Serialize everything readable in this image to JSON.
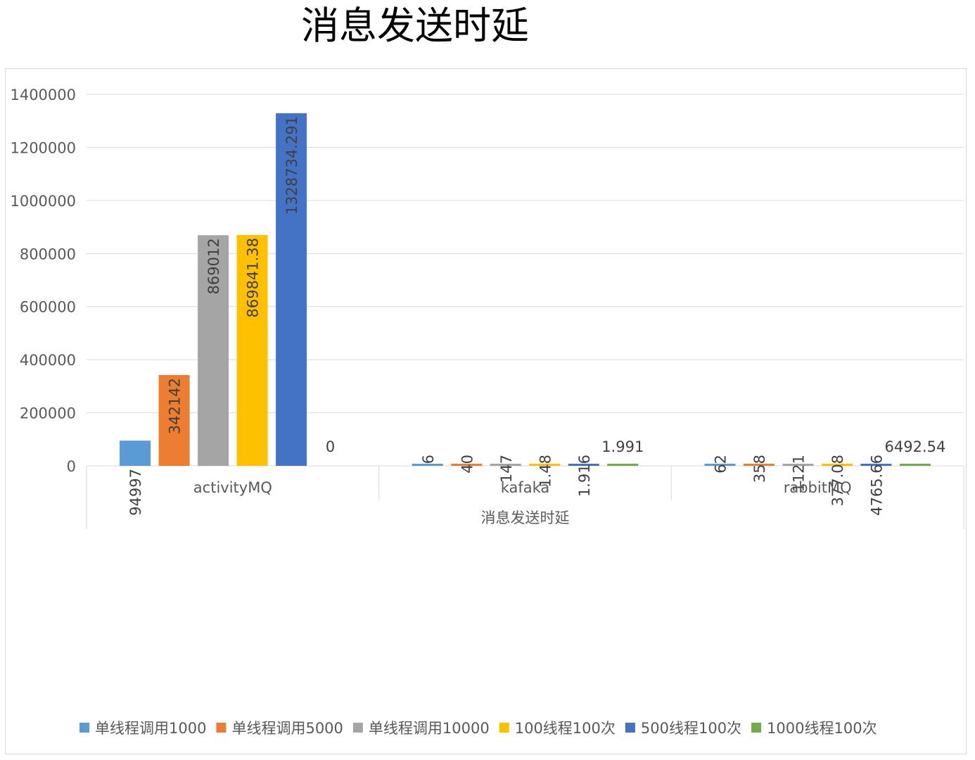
{
  "page": {
    "title": "消息发送时延"
  },
  "chart_data": {
    "type": "bar",
    "title": "消息发送时延",
    "xlabel": "消息发送时延",
    "ylabel": "",
    "categories": [
      "activityMQ",
      "kafaka",
      "rabbitMQ"
    ],
    "ylim": [
      0,
      1400000
    ],
    "yticks": [
      0,
      200000,
      400000,
      600000,
      800000,
      1000000,
      1200000,
      1400000
    ],
    "grid": true,
    "legend_position": "bottom",
    "series": [
      {
        "name": "单线程调用1000",
        "color": "#5b9bd5",
        "values": [
          94997,
          6,
          62
        ],
        "labels": [
          "94997",
          "6",
          "62"
        ]
      },
      {
        "name": "单线程调用5000",
        "color": "#ed7d31",
        "values": [
          342142,
          40,
          358
        ],
        "labels": [
          "342142",
          "40",
          "358"
        ]
      },
      {
        "name": "单线程调用10000",
        "color": "#a5a5a5",
        "values": [
          869012,
          147,
          1121
        ],
        "labels": [
          "869012",
          "147",
          "1121"
        ]
      },
      {
        "name": "100线程100次",
        "color": "#ffc000",
        "values": [
          869841.38,
          1.48,
          377.08
        ],
        "labels": [
          "869841.38",
          "1.48",
          "377.08"
        ]
      },
      {
        "name": "500线程100次",
        "color": "#4472c4",
        "values": [
          1328734.291,
          1.916,
          4765.66
        ],
        "labels": [
          "1328734.291",
          "1.916",
          "4765.66"
        ]
      },
      {
        "name": "1000线程100次",
        "color": "#70ad47",
        "values": [
          0,
          1.991,
          6492.54
        ],
        "labels": [
          "0",
          "1.991",
          "6492.54"
        ]
      }
    ]
  }
}
